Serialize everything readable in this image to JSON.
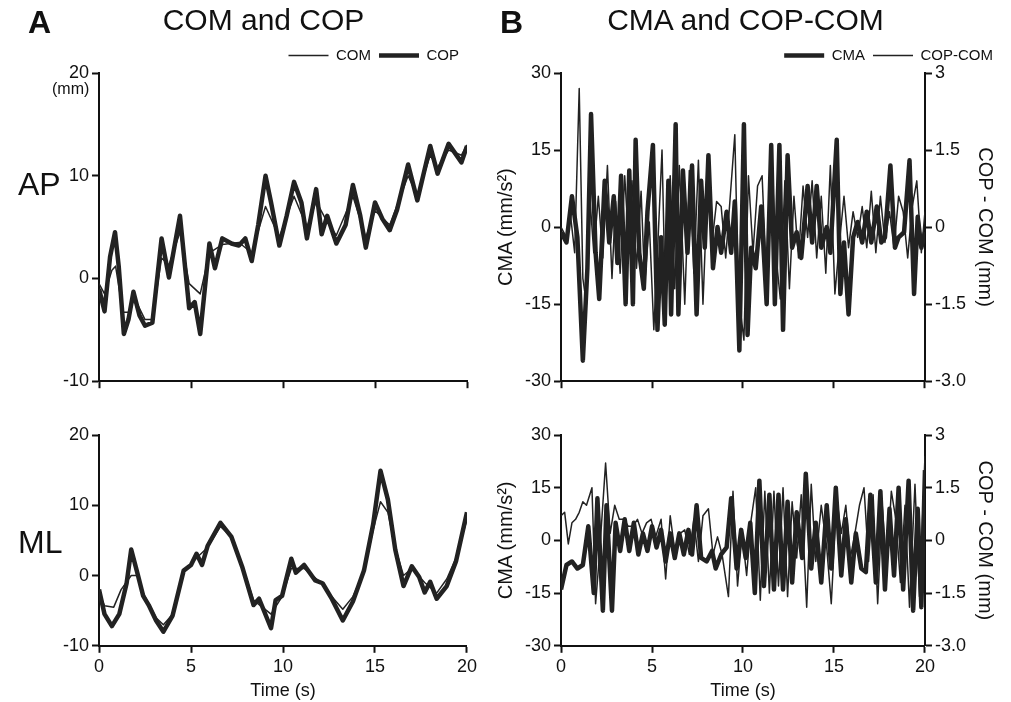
{
  "chart_data": [
    {
      "type": "line",
      "title": "COM and COP",
      "ylabel": "AP",
      "annotations": [
        "A",
        "(mm)"
      ],
      "legend": "top right",
      "tick_labels": "y",
      "xlim": [
        0,
        20
      ],
      "xticks": [
        0,
        5,
        10,
        15,
        20
      ],
      "ylim": [
        -10,
        20
      ],
      "yticks": [
        -10,
        0,
        10,
        20
      ],
      "series": [
        {
          "name": "COM",
          "color": "#222222",
          "x": [
            0,
            0.3,
            0.7,
            0.9,
            1.3,
            1.7,
            1.9,
            2.5,
            2.9,
            3.4,
            3.8,
            4.4,
            4.9,
            5.5,
            6.0,
            6.7,
            7.6,
            8.3,
            8.65,
            9.05,
            9.8,
            10.6,
            11.3,
            11.8,
            12.4,
            12.9,
            13.8,
            14.5,
            15.0,
            15.8,
            16.8,
            17.3,
            18.0,
            18.4,
            19.0,
            19.7,
            20.0
          ],
          "values": [
            -0.5,
            -1.5,
            0.8,
            1.2,
            -3.3,
            -3.3,
            -1.8,
            -4.0,
            -4.0,
            2.0,
            1.3,
            4.5,
            -0.5,
            -1.5,
            2.5,
            3.3,
            3.5,
            2.5,
            4.6,
            7.0,
            4.0,
            8.0,
            5.0,
            7.5,
            5.5,
            4.2,
            8.0,
            4.0,
            6.6,
            5.2,
            10.0,
            8.0,
            12.0,
            10.8,
            12.5,
            12.0,
            13.0
          ]
        },
        {
          "name": "COP",
          "color": "#222222",
          "x": [
            0,
            0.3,
            0.6,
            0.87,
            1.07,
            1.35,
            1.6,
            1.87,
            2.2,
            2.5,
            2.9,
            3.4,
            3.8,
            4.4,
            4.9,
            5.2,
            5.5,
            6.0,
            6.3,
            6.7,
            7.2,
            7.6,
            7.95,
            8.3,
            8.65,
            9.05,
            9.35,
            9.8,
            10.2,
            10.6,
            11.0,
            11.3,
            11.8,
            12.1,
            12.4,
            12.9,
            13.4,
            13.8,
            14.2,
            14.5,
            15.0,
            15.4,
            15.8,
            16.2,
            16.8,
            17.3,
            18.0,
            18.4,
            19.0,
            19.7,
            20.0
          ],
          "values": [
            -1.0,
            -3.2,
            2.1,
            4.5,
            1.2,
            -5.4,
            -4.0,
            -1.3,
            -3.6,
            -4.6,
            -4.3,
            3.9,
            0.1,
            6.1,
            -2.9,
            -2.3,
            -5.4,
            3.4,
            1.0,
            3.9,
            3.4,
            3.2,
            3.9,
            1.7,
            5.2,
            10.0,
            7.4,
            3.2,
            6.1,
            9.4,
            7.4,
            3.9,
            8.7,
            4.3,
            6.1,
            3.4,
            5.2,
            9.1,
            6.1,
            3.0,
            7.4,
            5.8,
            4.7,
            6.7,
            11.1,
            7.6,
            12.9,
            10.2,
            13.1,
            11.3,
            12.9
          ]
        }
      ]
    },
    {
      "type": "line",
      "title": "CMA and COP-COM",
      "ylabel": "CMA (mm/s²)",
      "y2label": "COP - COM (mm)",
      "annotations": [
        "B"
      ],
      "legend": "top right",
      "tick_labels": "y",
      "xlim": [
        0,
        20
      ],
      "xticks": [
        0,
        5,
        10,
        15,
        20
      ],
      "ylim": [
        -30,
        30
      ],
      "yticks": [
        -30,
        -15,
        0,
        15,
        30
      ],
      "y2lim": [
        -3,
        3
      ],
      "y2ticks": [
        {
          "value": -3,
          "label": "-3.0"
        },
        -1.5,
        0,
        1.5,
        3
      ],
      "series": [
        {
          "name": "CMA",
          "color": "#222222",
          "x": [
            0,
            0.3,
            0.6,
            0.9,
            1.2,
            1.45,
            1.65,
            1.9,
            2.1,
            2.4,
            2.65,
            2.9,
            3.1,
            3.3,
            3.55,
            3.75,
            3.95,
            4.1,
            4.3,
            4.55,
            4.75,
            5.05,
            5.3,
            5.5,
            5.7,
            5.9,
            6.05,
            6.3,
            6.45,
            6.7,
            6.95,
            7.2,
            7.45,
            7.7,
            7.9,
            8.1,
            8.35,
            8.6,
            8.8,
            9.1,
            9.35,
            9.55,
            9.8,
            10.05,
            10.25,
            10.45,
            10.7,
            11.0,
            11.3,
            11.55,
            11.75,
            12.0,
            12.2,
            12.45,
            12.7,
            12.95,
            13.2,
            13.55,
            13.8,
            14.05,
            14.3,
            14.6,
            14.8,
            15.15,
            15.35,
            15.55,
            15.8,
            16.05,
            16.3,
            16.55,
            16.8,
            17.05,
            17.35,
            17.6,
            17.8,
            18.1,
            18.35,
            18.55,
            18.85,
            19.15,
            19.4,
            19.6,
            19.8,
            20.0
          ],
          "values": [
            -1,
            -3,
            6,
            -2,
            -26,
            -8,
            22,
            -5,
            -14,
            9,
            -3,
            6,
            -7,
            10,
            -15,
            11,
            -15,
            17,
            -5,
            -12,
            3,
            16,
            -20,
            -2,
            -19,
            9,
            -17,
            20,
            -17,
            11,
            -5,
            12,
            -17,
            9,
            -4,
            14,
            -8,
            0,
            -5,
            3,
            -5,
            5,
            -24,
            20,
            -21,
            -4,
            -8,
            4,
            -15,
            16,
            -15,
            16,
            -20,
            14,
            -4,
            -1,
            -6,
            8,
            -3,
            8,
            -4,
            0,
            -5,
            17,
            -13,
            -3,
            -17,
            -2,
            1,
            -3,
            3,
            -3,
            4,
            -3,
            -2,
            12,
            -4,
            -2,
            -1,
            13,
            -13,
            2,
            -4,
            -1
          ]
        },
        {
          "name": "COP-COM",
          "color": "#222222",
          "axis": "y2",
          "x": [
            0,
            0.3,
            0.5,
            0.75,
            1.0,
            1.2,
            1.4,
            1.6,
            1.8,
            2.05,
            2.3,
            2.55,
            2.8,
            3.0,
            3.25,
            3.5,
            3.7,
            3.9,
            4.15,
            4.4,
            4.6,
            4.85,
            5.1,
            5.3,
            5.55,
            5.75,
            6.0,
            6.25,
            6.5,
            6.8,
            7.05,
            7.3,
            7.55,
            7.8,
            8.05,
            8.3,
            8.55,
            8.8,
            9.05,
            9.3,
            9.55,
            9.75,
            10.05,
            10.3,
            10.55,
            10.8,
            11.05,
            11.3,
            11.55,
            11.8,
            12.05,
            12.3,
            12.55,
            12.8,
            13.05,
            13.3,
            13.55,
            13.8,
            14.05,
            14.3,
            14.55,
            14.8,
            15.05,
            15.3,
            15.55,
            15.8,
            16.05,
            16.3,
            16.55,
            16.8,
            17.05,
            17.3,
            17.55,
            17.8,
            18.05,
            18.3,
            18.55,
            18.8,
            19.05,
            19.3,
            19.55,
            19.8,
            20.0
          ],
          "values": [
            0,
            -0.2,
            0.3,
            -0.5,
            2.7,
            -1.0,
            -1.5,
            0.5,
            -0.5,
            0.6,
            -0.6,
            1.2,
            -1.0,
            0.5,
            -0.9,
            1.0,
            -0.2,
            0.9,
            -0.8,
            0.7,
            -1.1,
            0.1,
            -2.0,
            -0.5,
            1.5,
            -1.7,
            1.0,
            -1.2,
            1.2,
            -1.5,
            1.1,
            -0.9,
            1.3,
            -1.5,
            0.8,
            -0.3,
            0.5,
            0.4,
            -0.6,
            0.6,
            1.8,
            -1.3,
            -2.2,
            1.0,
            -0.5,
            0.8,
            1.0,
            -1.1,
            1.6,
            -0.5,
            -1.4,
            0.9,
            -1.2,
            0.6,
            -0.6,
            0.8,
            -0.2,
            0.9,
            -0.6,
            0.6,
            -0.9,
            1.2,
            -1.3,
            -0.3,
            0.6,
            -0.4,
            0.3,
            -0.2,
            0.4,
            -0.4,
            0.7,
            -0.5,
            0.6,
            -0.3,
            0.3,
            -0.4,
            0.6,
            0.3,
            -0.6,
            0.4,
            0.9,
            -0.5,
            0.3
          ]
        }
      ]
    },
    {
      "type": "line",
      "xlabel": "Time (s)",
      "ylabel": "ML",
      "legend": false,
      "xlim": [
        0,
        20
      ],
      "xticks": [
        0,
        5,
        10,
        15,
        20
      ],
      "ylim": [
        -10,
        20
      ],
      "yticks": [
        -10,
        0,
        10,
        20
      ],
      "series": [
        {
          "color": "#222222",
          "x": [
            0,
            0.3,
            0.8,
            1.2,
            1.75,
            2.1,
            2.4,
            3.1,
            3.5,
            4.0,
            4.6,
            5.3,
            5.9,
            6.6,
            7.2,
            7.8,
            8.4,
            9.35,
            9.95,
            10.45,
            11.15,
            12.15,
            12.65,
            13.25,
            13.8,
            14.4,
            14.9,
            15.3,
            15.7,
            16.1,
            16.55,
            17.0,
            17.7,
            18.35,
            18.9,
            19.4,
            20.0
          ],
          "values": [
            -2.5,
            -4.3,
            -4.5,
            -2.0,
            0,
            0,
            -2.5,
            -6.0,
            -7.0,
            -5.5,
            0.5,
            2.5,
            4.0,
            7.0,
            5.5,
            1.3,
            -3.5,
            -5.5,
            -3.0,
            1.0,
            1.0,
            -1.2,
            -3.0,
            -4.8,
            -3.0,
            0.5,
            6.5,
            10.5,
            9.0,
            4.0,
            0,
            1.0,
            -1.0,
            -2.5,
            -0.5,
            2.5,
            8.0
          ]
        },
        {
          "color": "#222222",
          "x": [
            0,
            0.3,
            0.7,
            1.1,
            1.5,
            1.75,
            2.1,
            2.4,
            2.7,
            3.1,
            3.5,
            4.0,
            4.6,
            5.0,
            5.3,
            5.6,
            5.9,
            6.6,
            7.2,
            7.8,
            8.4,
            8.7,
            9.35,
            9.6,
            9.95,
            10.45,
            10.7,
            11.15,
            11.75,
            12.15,
            12.65,
            13.25,
            13.8,
            14.4,
            14.9,
            15.3,
            15.7,
            16.1,
            16.55,
            17.0,
            17.4,
            17.7,
            18.0,
            18.35,
            18.9,
            19.4,
            20.0
          ],
          "values": [
            -2.0,
            -5.5,
            -7.2,
            -5.5,
            -1.1,
            3.7,
            0.2,
            -2.9,
            -4.2,
            -6.4,
            -8.0,
            -5.7,
            0.7,
            1.5,
            3.1,
            1.5,
            4.2,
            7.5,
            5.5,
            1.1,
            -4.2,
            -3.3,
            -7.5,
            -3.5,
            -2.9,
            2.4,
            0.4,
            1.5,
            -0.7,
            -1.1,
            -3.3,
            -6.4,
            -3.7,
            0.7,
            7.3,
            14.9,
            10.8,
            3.7,
            -1.5,
            1.3,
            -0.2,
            -2.4,
            -0.9,
            -3.3,
            -1.5,
            2.0,
            9.0
          ]
        }
      ]
    },
    {
      "type": "line",
      "xlabel": "Time (s)",
      "ylabel": "CMA (mm/s²)",
      "y2label": "COP - COM (mm)",
      "legend": false,
      "xlim": [
        0,
        20
      ],
      "xticks": [
        0,
        5,
        10,
        15,
        20
      ],
      "ylim": [
        -30,
        30
      ],
      "yticks": [
        -30,
        -15,
        0,
        15,
        30
      ],
      "y2lim": [
        -3,
        3
      ],
      "y2ticks": [
        {
          "value": -3,
          "label": "-3.0"
        },
        -1.5,
        0,
        1.5,
        3
      ],
      "series": [
        {
          "color": "#222222",
          "x": [
            0,
            0.3,
            0.6,
            0.9,
            1.2,
            1.5,
            1.8,
            2.0,
            2.3,
            2.5,
            2.8,
            3.0,
            3.25,
            3.5,
            3.75,
            4.0,
            4.25,
            4.5,
            4.75,
            5.0,
            5.25,
            5.5,
            5.75,
            6.0,
            6.25,
            6.5,
            6.75,
            7.0,
            7.2,
            7.45,
            7.7,
            8.0,
            8.3,
            8.5,
            8.8,
            9.1,
            9.35,
            9.65,
            9.9,
            10.15,
            10.4,
            10.65,
            10.9,
            11.15,
            11.45,
            11.7,
            11.95,
            12.2,
            12.45,
            12.7,
            12.95,
            13.25,
            13.45,
            13.75,
            14.0,
            14.3,
            14.6,
            14.85,
            15.1,
            15.4,
            15.65,
            15.95,
            16.2,
            16.5,
            16.75,
            17.0,
            17.3,
            17.55,
            17.8,
            18.05,
            18.3,
            18.55,
            18.8,
            19.1,
            19.35,
            19.6,
            19.8,
            20.0
          ],
          "values": [
            -14,
            -7,
            -6,
            -8,
            -7,
            4,
            -15,
            12,
            -20,
            10,
            -20,
            5,
            -3,
            6,
            -3,
            5,
            -4,
            2,
            -3,
            4,
            -2,
            3,
            -6,
            2,
            -5,
            2,
            -4,
            3,
            -4,
            10,
            -5,
            -6,
            -3,
            -8,
            -4,
            -2,
            12,
            -8,
            3,
            -5,
            5,
            -15,
            17,
            -13,
            13,
            -14,
            13,
            -14,
            11,
            -12,
            8,
            -5,
            19,
            -8,
            5,
            -12,
            10,
            -8,
            15,
            -10,
            6,
            -12,
            2,
            -8,
            -9,
            13,
            -12,
            14,
            -14,
            9,
            -10,
            15,
            -14,
            17,
            -20,
            9,
            -19,
            20
          ]
        },
        {
          "color": "#222222",
          "axis": "y2",
          "x": [
            0,
            0.2,
            0.4,
            0.6,
            0.8,
            1.0,
            1.2,
            1.4,
            1.7,
            1.9,
            2.1,
            2.45,
            2.7,
            2.95,
            3.2,
            3.45,
            3.7,
            3.95,
            4.2,
            4.45,
            4.7,
            4.95,
            5.2,
            5.5,
            5.75,
            6.0,
            6.25,
            6.55,
            6.8,
            7.05,
            7.3,
            7.55,
            7.8,
            8.1,
            8.35,
            8.6,
            8.85,
            9.2,
            9.45,
            9.7,
            9.95,
            10.2,
            10.45,
            10.7,
            10.95,
            11.2,
            11.45,
            11.7,
            11.95,
            12.2,
            12.45,
            12.7,
            12.95,
            13.2,
            13.5,
            13.75,
            14.0,
            14.3,
            14.6,
            14.85,
            15.15,
            15.4,
            15.65,
            15.9,
            16.15,
            16.4,
            16.65,
            16.9,
            17.15,
            17.4,
            17.65,
            17.9,
            18.15,
            18.4,
            18.65,
            18.9,
            19.15,
            19.45,
            19.7,
            20.0
          ],
          "values": [
            0.7,
            0.8,
            -0.1,
            0.5,
            0.6,
            0.8,
            1.1,
            1.0,
            1.5,
            -1.8,
            -0.5,
            2.2,
            0.2,
            1.0,
            0.6,
            0.6,
            0.4,
            0.4,
            0.6,
            0.2,
            0.5,
            0.6,
            0.1,
            0.6,
            -1.1,
            0.7,
            -0.3,
            0.2,
            0.3,
            -0.4,
            0.6,
            -0.6,
            0.7,
            0.9,
            -0.4,
            0.1,
            -0.4,
            -1.6,
            1.4,
            -1.3,
            0.2,
            -1.0,
            0.6,
            1.5,
            -1.7,
            1.4,
            -1.5,
            1.4,
            -1.3,
            1.5,
            -1.6,
            1.1,
            -0.5,
            1.3,
            -1.9,
            1.6,
            -0.6,
            1.0,
            -0.2,
            -1.8,
            1.2,
            0.2,
            1.0,
            -0.5,
            0.2,
            1.0,
            1.5,
            -0.6,
            1.3,
            -1.8,
            1.0,
            -0.8,
            1.4,
            0.6,
            -1.2,
            1.0,
            -1.9,
            1.6,
            -1.6,
            2.4
          ]
        }
      ]
    }
  ]
}
